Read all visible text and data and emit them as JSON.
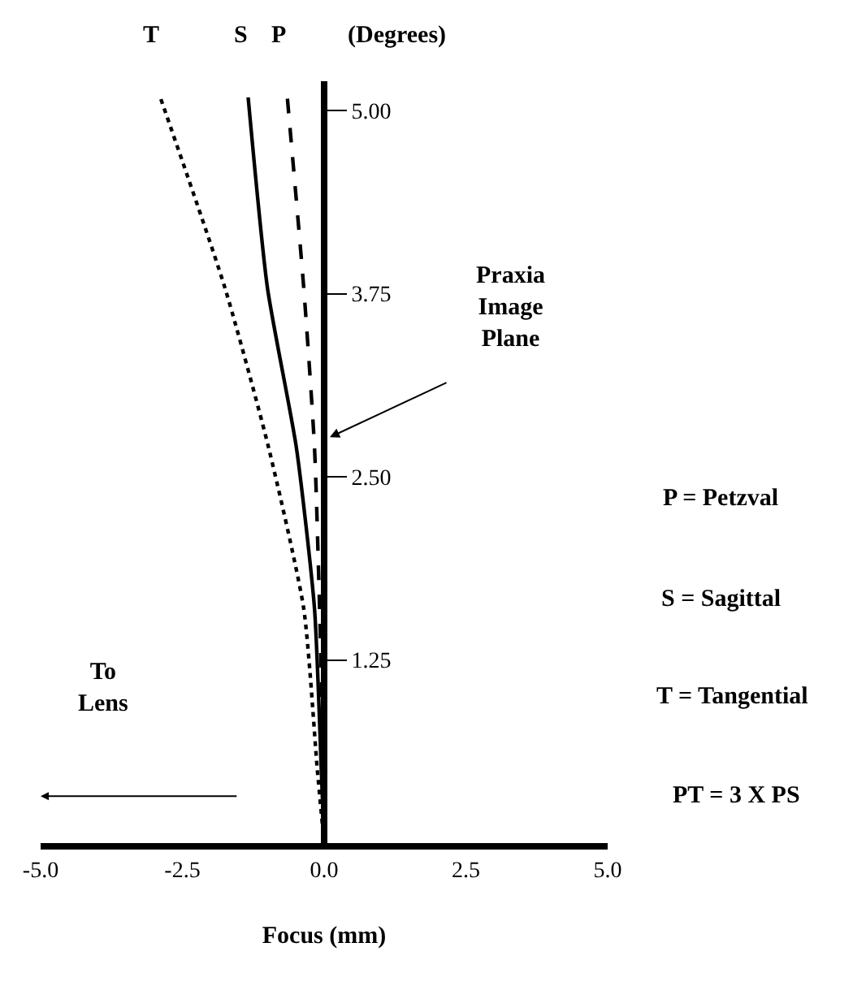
{
  "chart_data": {
    "type": "line",
    "xlabel": "Focus (mm)",
    "ylabel": "(Degrees)",
    "xlim": [
      -5,
      5
    ],
    "ylim": [
      0,
      5.2
    ],
    "xticks": [
      {
        "value": -5,
        "label": "-5.0"
      },
      {
        "value": -2.5,
        "label": "-2.5"
      },
      {
        "value": 0,
        "label": "0.0"
      },
      {
        "value": 2.5,
        "label": "2.5"
      },
      {
        "value": 5,
        "label": "5.0"
      }
    ],
    "yticks": [
      1.25,
      {
        "value": 2.5,
        "label": "2.50"
      },
      3.75,
      {
        "value": 5,
        "label": "5.00"
      }
    ],
    "grid": false,
    "legend": false,
    "marker": "none",
    "series": [
      {
        "name": "T",
        "color": "#000000",
        "line_style": "dotted",
        "x": [
          0,
          -0.12,
          -0.36,
          -0.98,
          -1.75,
          -2.89
        ],
        "values": [
          0,
          0.5,
          1.6,
          2.7,
          3.79,
          5.09
        ]
      },
      {
        "name": "S",
        "color": "#000000",
        "line_style": "solid",
        "x": [
          0,
          -0.05,
          -0.17,
          -0.49,
          -1.0,
          -1.34
        ],
        "values": [
          0,
          0.5,
          1.6,
          2.7,
          3.79,
          5.09
        ]
      },
      {
        "name": "P",
        "color": "#000000",
        "line_style": "dashed",
        "x": [
          0,
          -0.01,
          -0.08,
          -0.17,
          -0.36,
          -0.65
        ],
        "values": [
          0,
          0.5,
          1.6,
          2.7,
          3.79,
          5.09
        ]
      }
    ],
    "annotations": [
      "Praxia\nImage\nPlane",
      "To\nLens",
      "P = Petzval",
      "S = Sagittal",
      "T = Tangential",
      "PT = 3 X PS"
    ]
  }
}
